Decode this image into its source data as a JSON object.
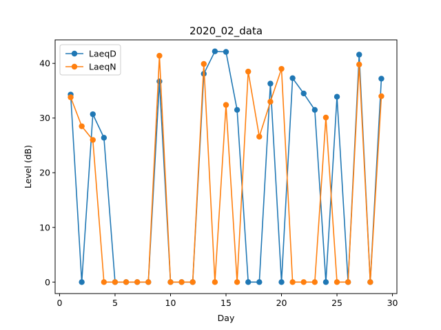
{
  "chart_data": {
    "type": "line",
    "title": "2020_02_data",
    "xlabel": "Day",
    "ylabel": "Level (dB)",
    "xlim": [
      -0.4,
      30.4
    ],
    "ylim": [
      -2.1,
      44.3
    ],
    "xticks": [
      0,
      5,
      10,
      15,
      20,
      25,
      30
    ],
    "yticks": [
      0,
      10,
      20,
      30,
      40
    ],
    "grid": false,
    "legend_position": "upper-left",
    "x": [
      1,
      2,
      3,
      4,
      5,
      6,
      7,
      8,
      9,
      10,
      11,
      12,
      13,
      14,
      15,
      16,
      17,
      18,
      19,
      20,
      21,
      22,
      23,
      24,
      25,
      26,
      27,
      28,
      29
    ],
    "series": [
      {
        "name": "LaeqD",
        "color": "#1f77b4",
        "values": [
          34.3,
          0,
          30.7,
          26.4,
          0,
          0,
          0,
          0,
          36.7,
          0,
          0,
          0,
          38.1,
          42.2,
          42.1,
          31.5,
          0,
          0,
          36.3,
          0,
          37.3,
          34.5,
          31.5,
          0,
          33.9,
          0,
          41.6,
          0,
          37.2
        ]
      },
      {
        "name": "LaeqN",
        "color": "#ff7f0e",
        "values": [
          33.8,
          28.5,
          26.0,
          0,
          0,
          0,
          0,
          0,
          41.4,
          0,
          0,
          0,
          39.9,
          0,
          32.4,
          0,
          38.5,
          26.6,
          33.0,
          39.0,
          0,
          0,
          0,
          30.1,
          0,
          0,
          39.8,
          0,
          34.0
        ]
      }
    ]
  }
}
